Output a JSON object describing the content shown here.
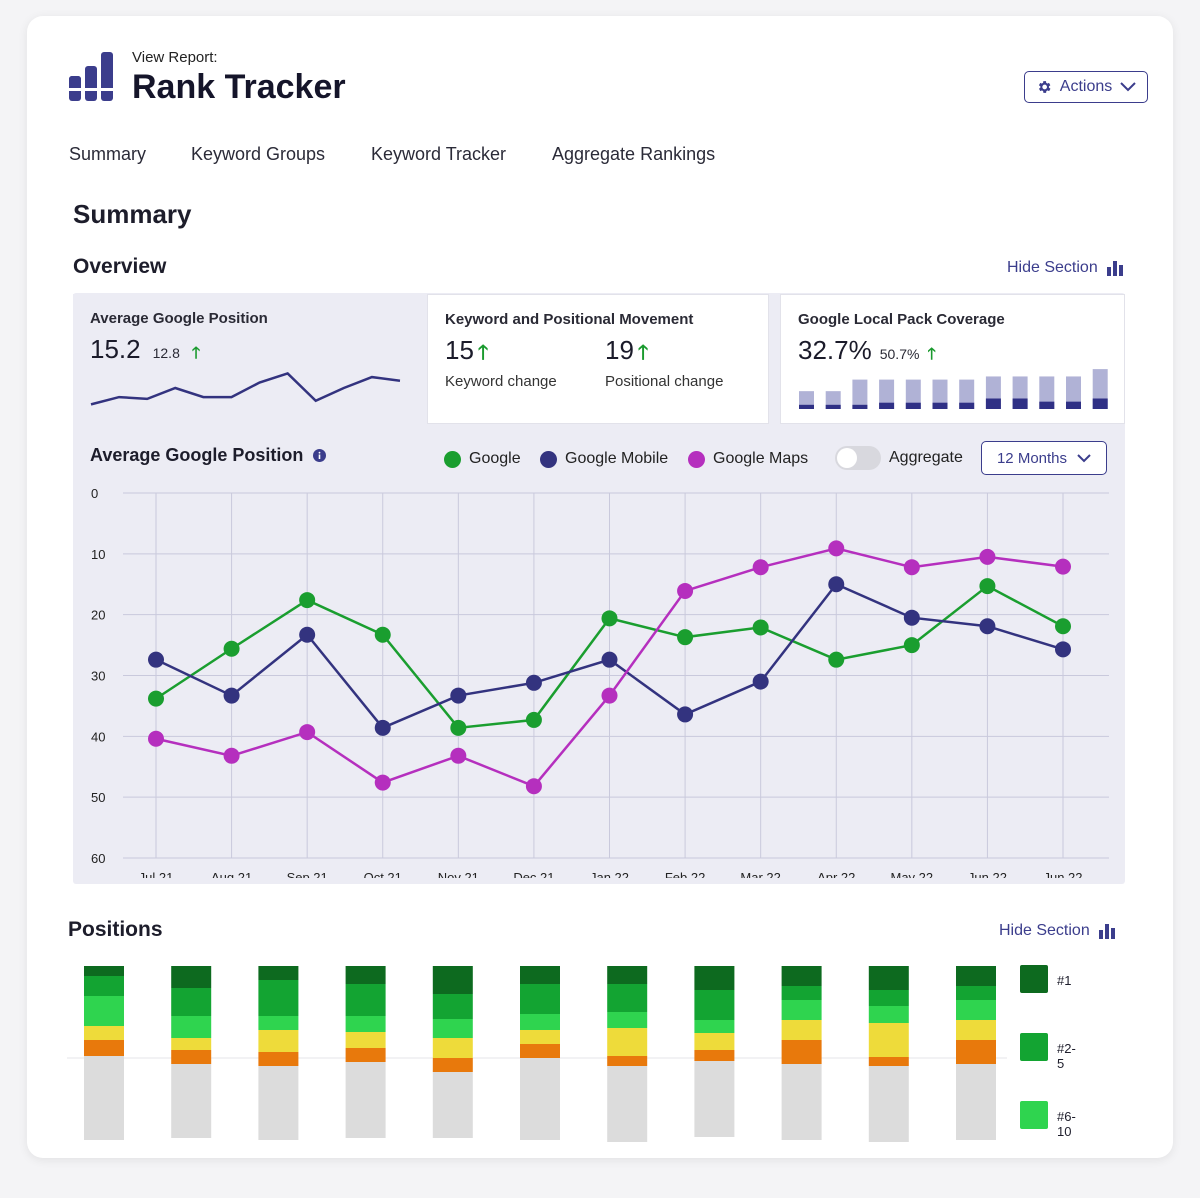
{
  "header": {
    "subtitle": "View Report:",
    "title": "Rank Tracker",
    "actions_label": "Actions",
    "actions_icon": "gear-icon"
  },
  "tabs": [
    "Summary",
    "Keyword Groups",
    "Keyword Tracker",
    "Aggregate Rankings"
  ],
  "page_title": "Summary",
  "overview": {
    "title": "Overview",
    "hide_label": "Hide Section",
    "cards": {
      "avg_position": {
        "label": "Average Google Position",
        "value": "15.2",
        "previous": "12.8",
        "sparkline": [
          20,
          16,
          17,
          11,
          16,
          16,
          8,
          3,
          18,
          11,
          5,
          7
        ]
      },
      "movement": {
        "label": "Keyword and Positional Movement",
        "keyword_value": "15",
        "keyword_caption": "Keyword change",
        "positional_value": "19",
        "positional_caption": "Positional change"
      },
      "local_pack": {
        "label": "Google Local Pack Coverage",
        "value": "32.7%",
        "previous": "50.7%",
        "bars_total": [
          17,
          17,
          28,
          28,
          28,
          28,
          28,
          31,
          31,
          31,
          31,
          38
        ],
        "bars_covered": [
          4,
          4,
          4,
          6,
          6,
          6,
          6,
          10,
          10,
          7,
          7,
          10
        ]
      }
    }
  },
  "chart": {
    "title": "Average Google Position",
    "info_icon": "info-icon",
    "aggregate_label": "Aggregate",
    "range_label": "12 Months",
    "colors": {
      "google": "#1a9e2f",
      "google_mobile": "#33337f",
      "google_maps": "#b52fbe",
      "grid": "#c9c9dc"
    }
  },
  "chart_data": {
    "type": "line",
    "x": [
      "Jul 21",
      "Aug 21",
      "Sep 21",
      "Oct 21",
      "Nov 21",
      "Dec 21",
      "Jan 22",
      "Feb 22",
      "Mar 22",
      "Apr 22",
      "May 22",
      "Jun 22",
      "Jun 22"
    ],
    "ylim": [
      0,
      60
    ],
    "y_ticks": [
      "0",
      "10",
      "20",
      "30",
      "40",
      "50",
      "60"
    ],
    "y_inverted": true,
    "grid": true,
    "legend_position": "top",
    "series": [
      {
        "name": "Google",
        "color": "#1a9e2f",
        "values": [
          33.8,
          25.6,
          17.6,
          23.3,
          38.6,
          37.3,
          20.6,
          23.7,
          22.1,
          27.4,
          25.0,
          15.3,
          21.9
        ]
      },
      {
        "name": "Google Mobile",
        "color": "#33337f",
        "values": [
          27.4,
          33.3,
          23.3,
          38.6,
          33.3,
          31.2,
          27.4,
          36.4,
          31.0,
          15.0,
          20.5,
          21.9,
          25.7
        ]
      },
      {
        "name": "Google Maps",
        "color": "#b52fbe",
        "values": [
          40.4,
          43.2,
          39.3,
          47.6,
          43.2,
          48.2,
          33.3,
          16.1,
          12.2,
          9.1,
          12.2,
          10.5,
          12.1
        ]
      }
    ]
  },
  "positions": {
    "title": "Positions",
    "hide_label": "Hide Section",
    "legend": [
      "#1",
      "#2-5",
      "#6-10"
    ],
    "colors": [
      "#0d6a1f",
      "#13a432",
      "#2fd44f",
      "#eedb3a",
      "#e8790c",
      "#dcdcdc"
    ],
    "columns": [
      [
        10,
        20,
        30,
        14,
        16,
        84
      ],
      [
        22,
        28,
        22,
        12,
        14,
        74
      ],
      [
        14,
        36,
        14,
        22,
        14,
        74
      ],
      [
        18,
        32,
        16,
        16,
        14,
        76
      ],
      [
        28,
        25,
        19,
        20,
        14,
        66
      ],
      [
        18,
        30,
        16,
        14,
        14,
        82
      ],
      [
        18,
        28,
        16,
        28,
        10,
        76
      ],
      [
        24,
        30,
        13,
        17,
        11,
        76
      ],
      [
        20,
        14,
        20,
        20,
        24,
        76
      ],
      [
        24,
        16,
        17,
        34,
        9,
        76
      ],
      [
        20,
        14,
        20,
        20,
        24,
        76
      ]
    ]
  }
}
